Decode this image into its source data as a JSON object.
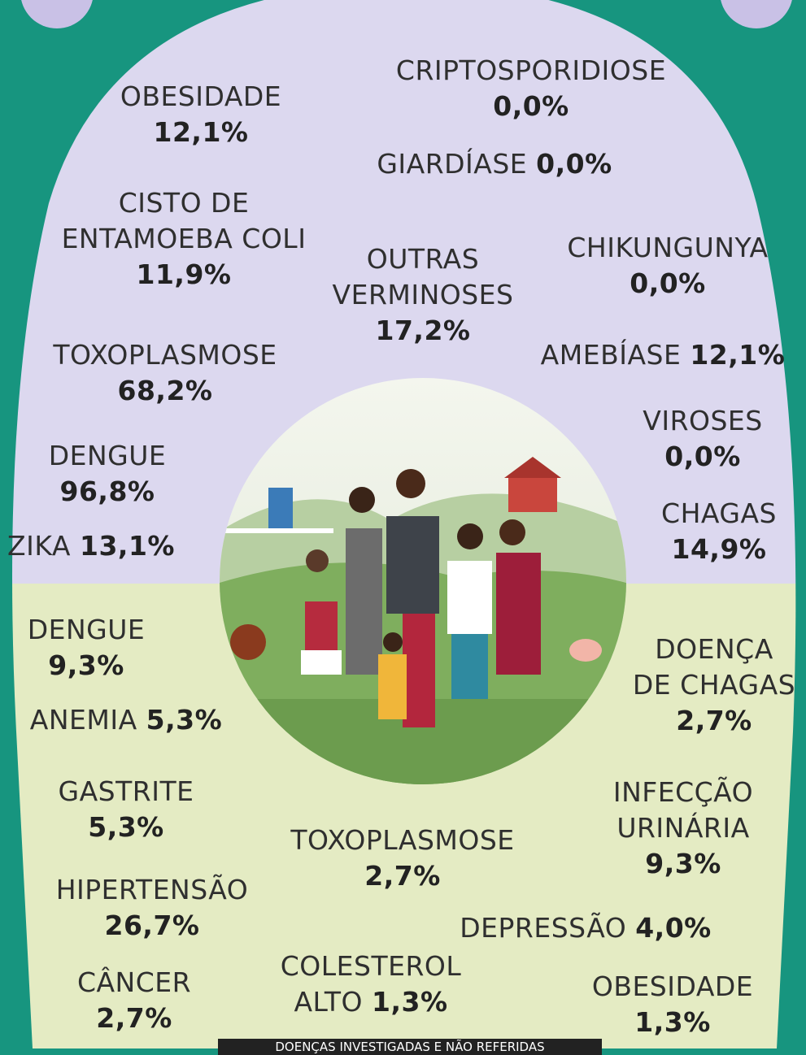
{
  "top": [
    {
      "lines": [
        "CRIPTOSPORIDIOSE"
      ],
      "value": "0,0%"
    },
    {
      "lines": [
        "OBESIDADE"
      ],
      "value": "12,1%"
    },
    {
      "lines": [
        "GIARDÍASE"
      ],
      "value": "0,0%"
    },
    {
      "lines": [
        "CISTO DE",
        "ENTAMOEBA COLI"
      ],
      "value": "11,9%"
    },
    {
      "lines": [
        "OUTRAS",
        "VERMINOSES"
      ],
      "value": "17,2%"
    },
    {
      "lines": [
        "CHIKUNGUNYA"
      ],
      "value": "0,0%"
    },
    {
      "lines": [
        "TOXOPLASMOSE"
      ],
      "value": "68,2%"
    },
    {
      "lines": [
        "AMEBÍASE"
      ],
      "value": "12,1%"
    },
    {
      "lines": [
        "VIROSES"
      ],
      "value": "0,0%"
    },
    {
      "lines": [
        "DENGUE"
      ],
      "value": "96,8%"
    },
    {
      "lines": [
        "CHAGAS"
      ],
      "value": "14,9%"
    },
    {
      "lines": [
        "ZIKA"
      ],
      "value": "13,1%"
    }
  ],
  "bottom": [
    {
      "lines": [
        "DENGUE"
      ],
      "value": "9,3%"
    },
    {
      "lines": [
        "ANEMIA"
      ],
      "value": "5,3%"
    },
    {
      "lines": [
        "DOENÇA",
        "DE CHAGAS"
      ],
      "value": "2,7%"
    },
    {
      "lines": [
        "GASTRITE"
      ],
      "value": "5,3%"
    },
    {
      "lines": [
        "INFECÇÃO",
        "URINÁRIA"
      ],
      "value": "9,3%"
    },
    {
      "lines": [
        "TOXOPLASMOSE"
      ],
      "value": "2,7%"
    },
    {
      "lines": [
        "HIPERTENSÃO"
      ],
      "value": "26,7%"
    },
    {
      "lines": [
        "DEPRESSÃO"
      ],
      "value": "4,0%"
    },
    {
      "lines": [
        "COLESTEROL",
        "ALTO"
      ],
      "value": "1,3%"
    },
    {
      "lines": [
        "CÂNCER"
      ],
      "value": "2,7%"
    },
    {
      "lines": [
        "OBESIDADE"
      ],
      "value": "1,3%"
    }
  ],
  "footer": "DOENÇAS INVESTIGADAS E NÃO REFERIDAS"
}
